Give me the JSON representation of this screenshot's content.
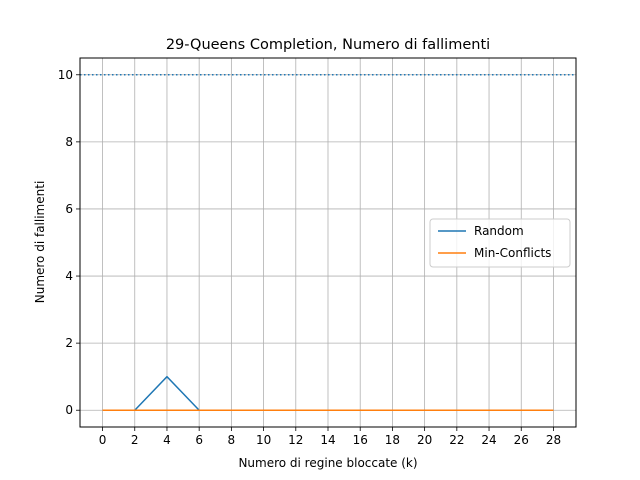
{
  "chart_data": {
    "type": "line",
    "title": "29-Queens Completion, Numero di fallimenti",
    "xlabel": "Numero di regine bloccate (k)",
    "ylabel": "Numero di fallimenti",
    "x": [
      0,
      2,
      4,
      6,
      8,
      10,
      12,
      14,
      16,
      18,
      20,
      22,
      24,
      26,
      28
    ],
    "xticks": [
      "0",
      "2",
      "4",
      "6",
      "8",
      "10",
      "12",
      "14",
      "16",
      "18",
      "20",
      "22",
      "24",
      "26",
      "28"
    ],
    "yticks": [
      "0",
      "2",
      "4",
      "6",
      "8",
      "10"
    ],
    "xlim": [
      -1.4,
      29.4
    ],
    "ylim": [
      -0.5,
      10.5
    ],
    "grid": true,
    "legend_position": "center-right",
    "series": [
      {
        "name": "Random",
        "color": "#1f77b4",
        "values": [
          0,
          0,
          1,
          0,
          0,
          0,
          0,
          0,
          0,
          0,
          0,
          0,
          0,
          0,
          0
        ]
      },
      {
        "name": "Min-Conflicts",
        "color": "#ff7f0e",
        "values": [
          0,
          0,
          0,
          0,
          0,
          0,
          0,
          0,
          0,
          0,
          0,
          0,
          0,
          0,
          0
        ]
      }
    ],
    "reference_line": {
      "y": 10,
      "style": "dotted",
      "color": "#1f77b4"
    }
  }
}
